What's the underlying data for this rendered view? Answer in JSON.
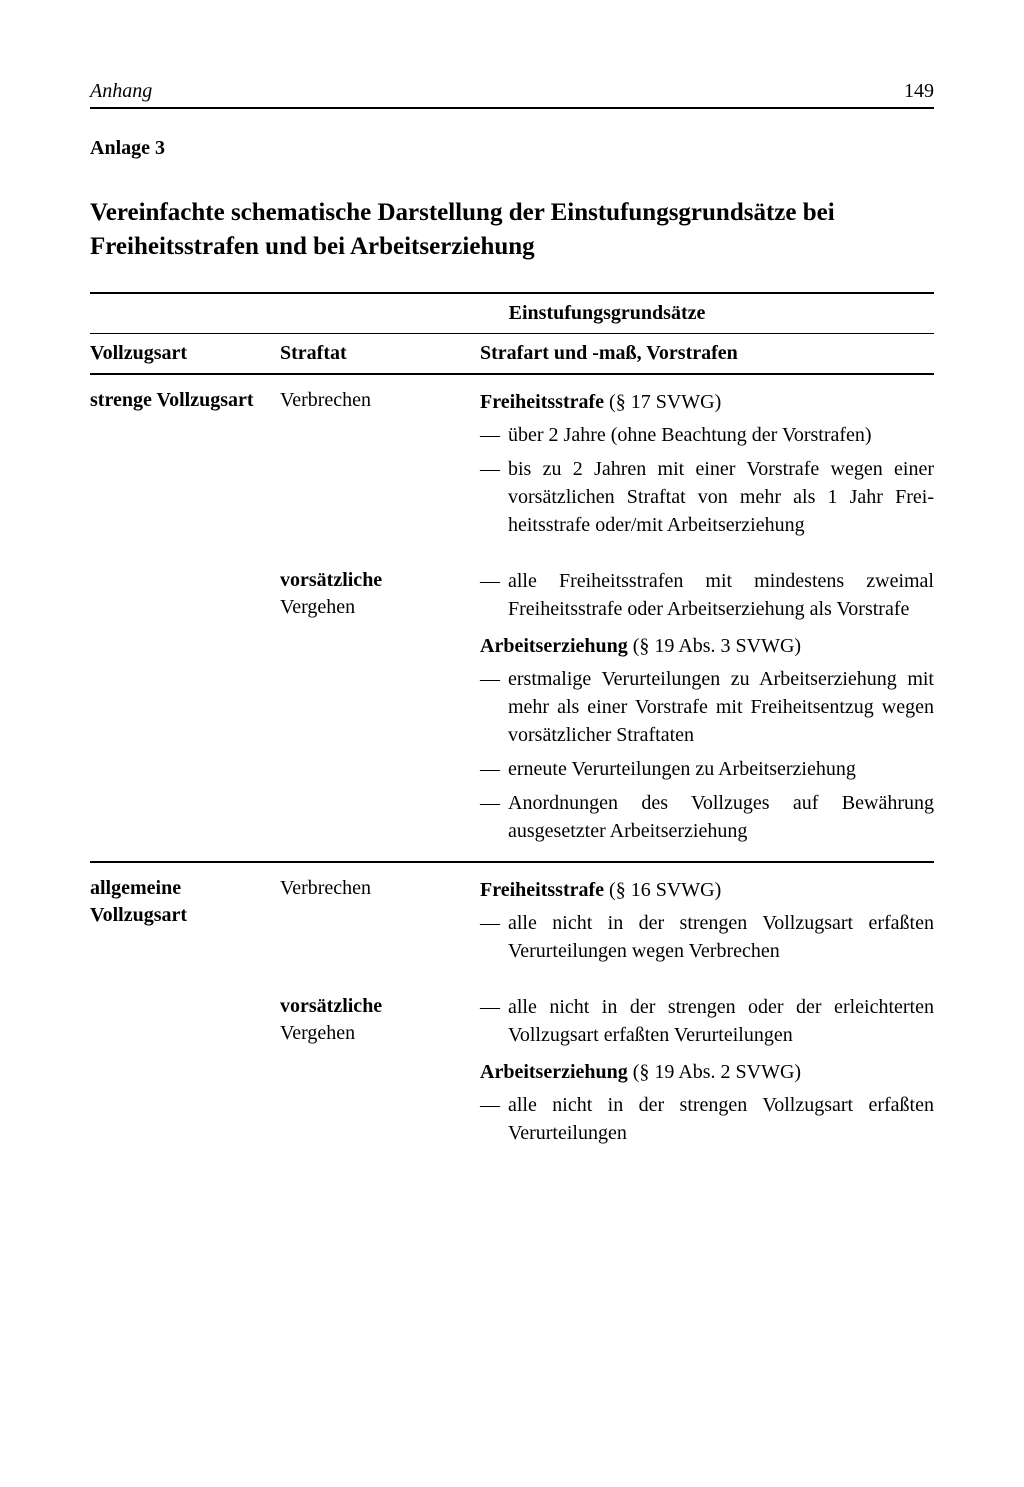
{
  "header": {
    "left": "Anhang",
    "pageNumber": "149"
  },
  "anlage": "Anlage 3",
  "title": "Vereinfachte schematische Darstellung der Einstufungs­grundsätze bei Freiheitsstrafen und bei Arbeitserziehung",
  "tableHeader": {
    "col1": "Vollzugsart",
    "spanHeader": "Einstufungsgrundsätze",
    "col2": "Straftat",
    "col3": "Strafart und -maß, Vorstrafen"
  },
  "sections": [
    {
      "vollzugsart": "strenge Vollzugsart",
      "rows": [
        {
          "straftat": "Verbrechen",
          "straftatBold": false,
          "blocks": [
            {
              "heading": {
                "bold": "Freiheitsstrafe",
                "rest": " (§ 17 SVWG)"
              },
              "items": [
                "über 2 Jahre (ohne Beachtung der Vorstrafen)",
                "bis zu 2 Jahren mit einer Vor­strafe wegen einer vorsätzlichen Straftat von mehr als 1 Jahr Frei­heitsstrafe oder/mit Arbeits­erziehung"
              ]
            }
          ]
        },
        {
          "straftat": "vorsätzliche",
          "straftat2": "Vergehen",
          "straftatBold": true,
          "blocks": [
            {
              "heading": null,
              "items": [
                "alle Freiheitsstrafen mit minde­stens zweimal Freiheitsstrafe oder Arbeitserziehung als Vorstrafe"
              ]
            },
            {
              "heading": {
                "bold": "Arbeitserziehung",
                "rest": " (§ 19 Abs. 3 SVWG)"
              },
              "items": [
                "erstmalige Verurteilungen zu Arbeitserziehung mit mehr als einer Vorstrafe mit Freiheitsent­zug wegen vorsätzlicher Straf­taten",
                "erneute Verurteilungen zu Ar­beitserziehung",
                "Anordnungen des Vollzuges auf Bewährung ausgesetzter Arbeits­erziehung"
              ]
            }
          ]
        }
      ]
    },
    {
      "vollzugsart": "allgemeine Vollzugsart",
      "rows": [
        {
          "straftat": "Verbrechen",
          "straftatBold": false,
          "blocks": [
            {
              "heading": {
                "bold": "Freiheitsstrafe",
                "rest": " (§ 16 SVWG)"
              },
              "items": [
                "alle nicht in der strengen Voll­zugsart erfaßten Verurteilungen wegen Verbrechen"
              ]
            }
          ]
        },
        {
          "straftat": "vorsätzliche",
          "straftat2": "Vergehen",
          "straftatBold": true,
          "blocks": [
            {
              "heading": null,
              "items": [
                "alle nicht in der strengen oder der erleichterten Vollzugsart er­faßten Verurteilungen"
              ]
            },
            {
              "heading": {
                "bold": "Arbeitserziehung",
                "rest": " (§ 19 Abs. 2 SVWG)"
              },
              "items": [
                "alle nicht in der strengen Voll­zugsart erfaßten Verurteilungen"
              ]
            }
          ]
        }
      ]
    }
  ]
}
